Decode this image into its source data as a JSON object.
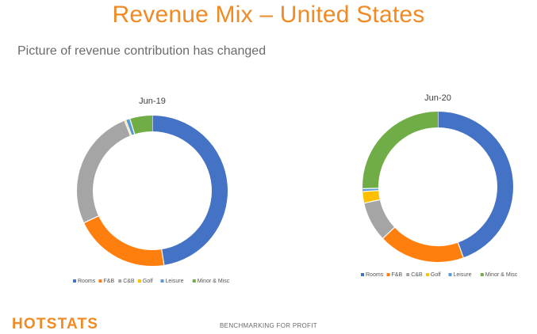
{
  "slide": {
    "title": "Revenue Mix – United States",
    "subtitle": "Picture of revenue contribution has changed",
    "logo": "HOTSTATS",
    "tagline": "BENCHMARKING FOR PROFIT"
  },
  "colors": {
    "Rooms": "#4472c4",
    "F&B": "#ff7f0e",
    "C&B": "#a5a5a5",
    "Golf": "#ffc000",
    "Leisure": "#5b9bd5",
    "Minor & Misc": "#70ad47"
  },
  "chart_data": [
    {
      "type": "pie",
      "title": "Jun-19",
      "legend_position": "bottom",
      "categories": [
        "Rooms",
        "F&B",
        "C&B",
        "Golf",
        "Leisure",
        "Minor & Misc"
      ],
      "values": [
        47.5,
        20.5,
        26.0,
        0.3,
        0.9,
        4.8
      ]
    },
    {
      "type": "pie",
      "title": "Jun-20",
      "legend_position": "bottom",
      "categories": [
        "Rooms",
        "F&B",
        "C&B",
        "Golf",
        "Leisure",
        "Minor & Misc"
      ],
      "values": [
        44.5,
        18.5,
        8.5,
        2.5,
        0.6,
        25.4
      ]
    }
  ]
}
